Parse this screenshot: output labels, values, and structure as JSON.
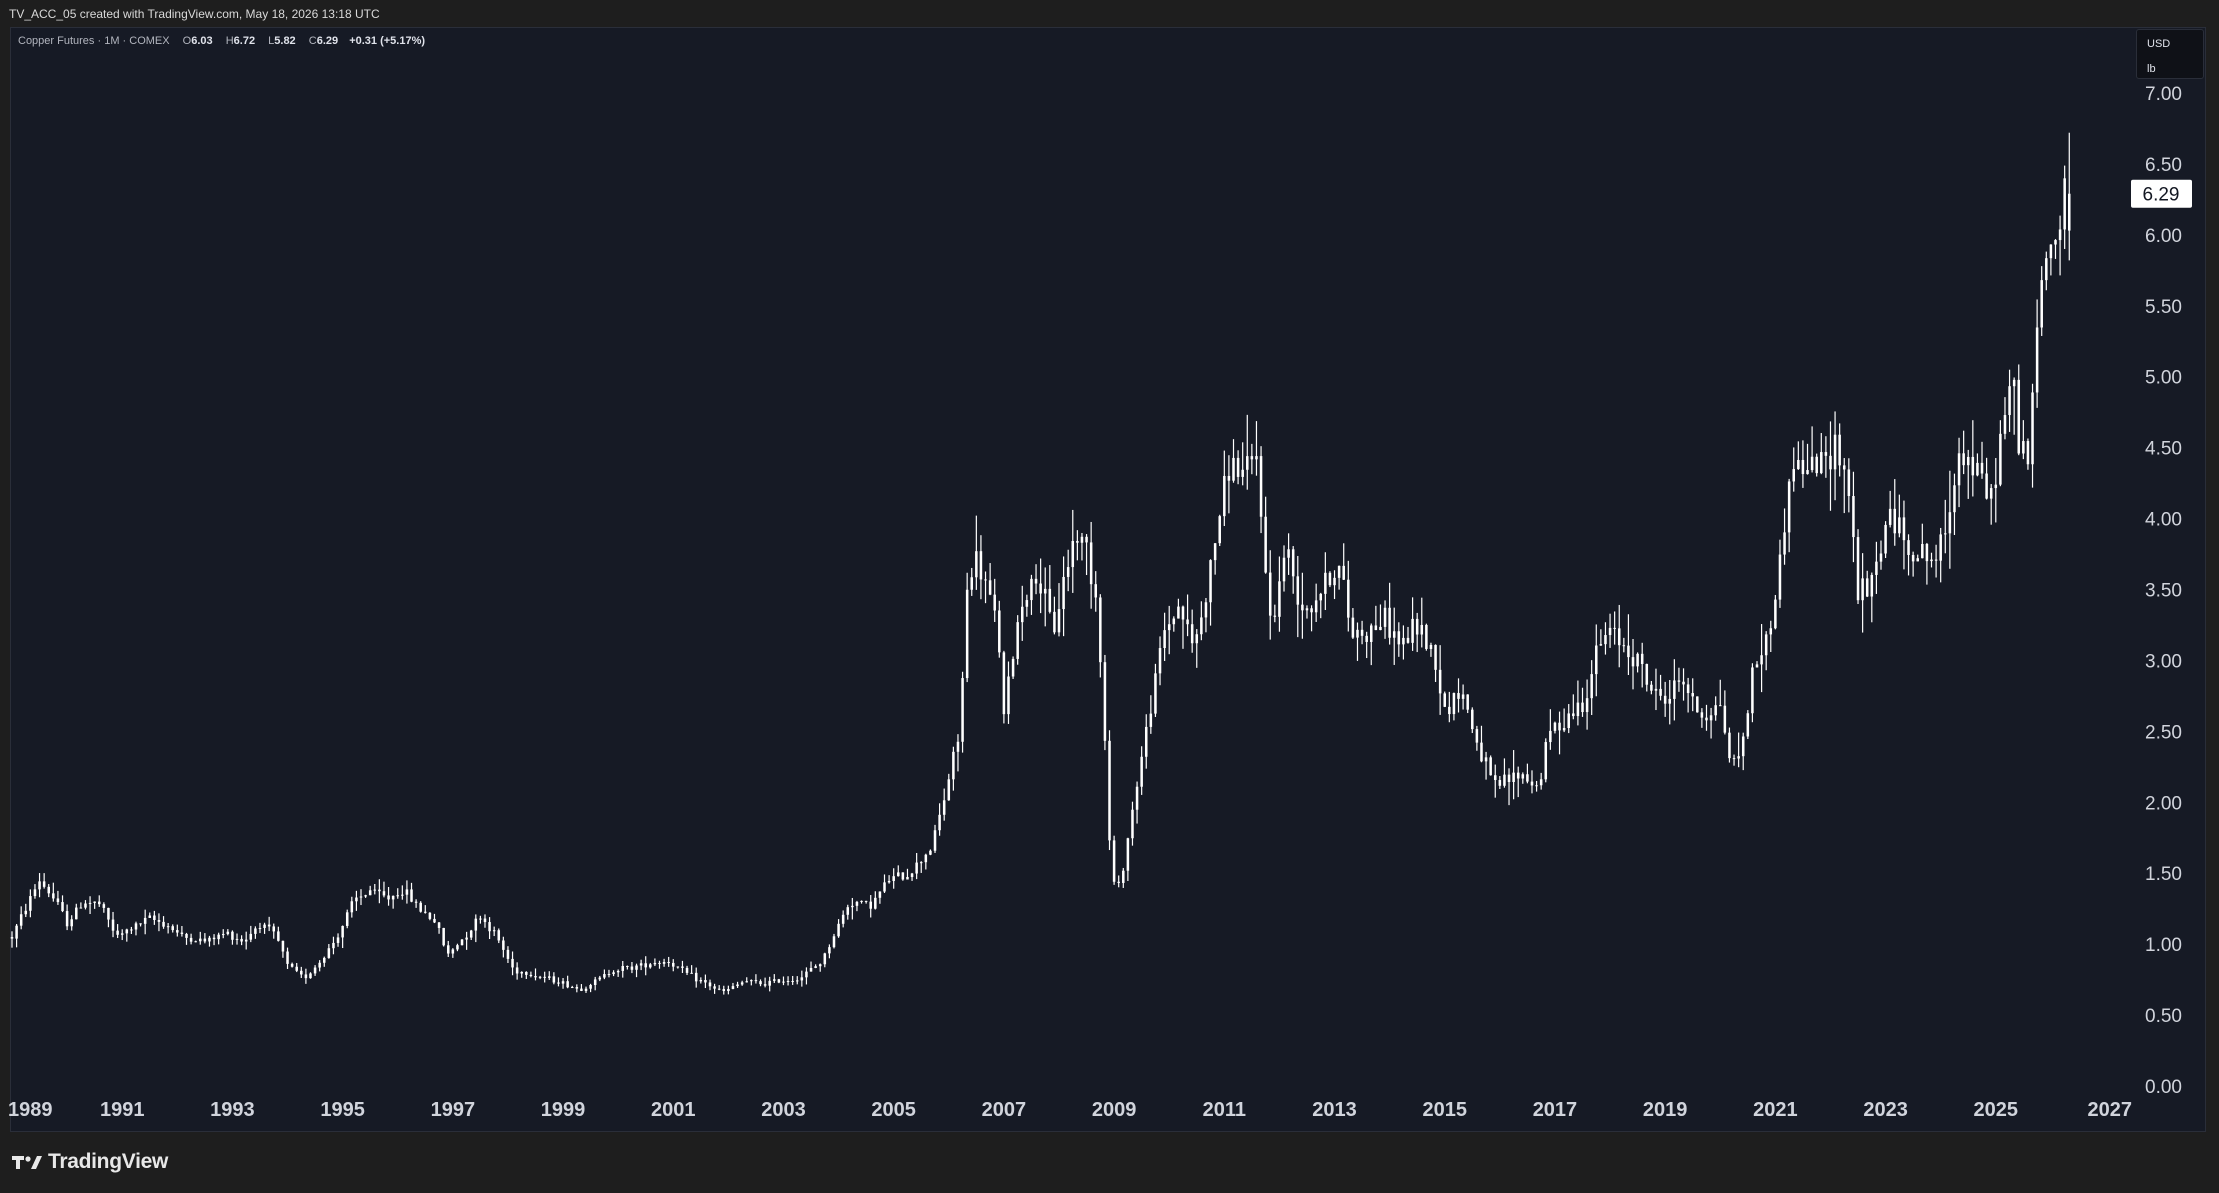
{
  "caption": "TV_ACC_05 created with TradingView.com, May 18, 2026 13:18 UTC",
  "legend": {
    "symbol": "Copper Futures · 1M · COMEX",
    "o_label": "O",
    "o_value": "6.03",
    "h_label": "H",
    "h_value": "6.72",
    "l_label": "L",
    "l_value": "5.82",
    "c_label": "C",
    "c_value": "6.29",
    "change": "+0.31 (+5.17%)"
  },
  "unit_box": {
    "currency": "USD",
    "unit": "lb"
  },
  "last_price_label": "6.29",
  "brand": {
    "name": "TradingView"
  },
  "colors": {
    "background": "#161a25",
    "candle": "#ffffff",
    "text": "#d1d4dc",
    "last_price_bg": "#ffffff"
  },
  "chart_data": {
    "type": "candlestick",
    "interval": "1M",
    "title": "Copper Futures · 1M · COMEX",
    "ylim": [
      0,
      7
    ],
    "y_ticks": [
      "0.00",
      "0.50",
      "1.00",
      "1.50",
      "2.00",
      "2.50",
      "3.00",
      "3.50",
      "4.00",
      "4.50",
      "5.00",
      "5.50",
      "6.00",
      "6.50",
      "7.00"
    ],
    "x_ticks": [
      "1989",
      "1991",
      "1993",
      "1995",
      "1997",
      "1999",
      "2001",
      "2003",
      "2005",
      "2007",
      "2009",
      "2011",
      "2013",
      "2015",
      "2017",
      "2019",
      "2021",
      "2023",
      "2025",
      "2027"
    ],
    "xlim": [
      1989.0,
      2027.0
    ],
    "grid": false,
    "last": {
      "open": 6.03,
      "high": 6.72,
      "low": 5.82,
      "close": 6.29,
      "change": 0.31,
      "change_pct": 5.17
    },
    "anchors": [
      [
        1989.0,
        1.05
      ],
      [
        1989.3,
        1.3
      ],
      [
        1989.5,
        1.45
      ],
      [
        1989.8,
        1.3
      ],
      [
        1990.0,
        1.15
      ],
      [
        1990.3,
        1.3
      ],
      [
        1990.6,
        1.28
      ],
      [
        1990.9,
        1.05
      ],
      [
        1991.2,
        1.12
      ],
      [
        1991.5,
        1.18
      ],
      [
        1991.8,
        1.14
      ],
      [
        1992.1,
        1.05
      ],
      [
        1992.5,
        1.02
      ],
      [
        1992.9,
        1.08
      ],
      [
        1993.2,
        1.02
      ],
      [
        1993.5,
        1.15
      ],
      [
        1993.8,
        1.05
      ],
      [
        1994.0,
        0.85
      ],
      [
        1994.3,
        0.76
      ],
      [
        1994.6,
        0.88
      ],
      [
        1994.9,
        1.05
      ],
      [
        1995.2,
        1.3
      ],
      [
        1995.5,
        1.38
      ],
      [
        1995.8,
        1.32
      ],
      [
        1996.1,
        1.38
      ],
      [
        1996.4,
        1.25
      ],
      [
        1996.7,
        1.15
      ],
      [
        1996.9,
        0.92
      ],
      [
        1997.2,
        1.05
      ],
      [
        1997.5,
        1.2
      ],
      [
        1997.8,
        1.05
      ],
      [
        1998.1,
        0.82
      ],
      [
        1998.5,
        0.78
      ],
      [
        1998.9,
        0.74
      ],
      [
        1999.3,
        0.68
      ],
      [
        1999.6,
        0.74
      ],
      [
        1999.9,
        0.82
      ],
      [
        2000.3,
        0.84
      ],
      [
        2000.6,
        0.87
      ],
      [
        2000.9,
        0.88
      ],
      [
        2001.3,
        0.78
      ],
      [
        2001.6,
        0.72
      ],
      [
        2001.9,
        0.66
      ],
      [
        2002.3,
        0.74
      ],
      [
        2002.6,
        0.72
      ],
      [
        2002.9,
        0.74
      ],
      [
        2003.3,
        0.76
      ],
      [
        2003.7,
        0.88
      ],
      [
        2003.9,
        1.05
      ],
      [
        2004.2,
        1.3
      ],
      [
        2004.6,
        1.28
      ],
      [
        2004.9,
        1.45
      ],
      [
        2005.3,
        1.5
      ],
      [
        2005.7,
        1.7
      ],
      [
        2005.9,
        2.0
      ],
      [
        2006.2,
        2.5
      ],
      [
        2006.35,
        3.6
      ],
      [
        2006.5,
        3.7
      ],
      [
        2006.7,
        3.5
      ],
      [
        2006.9,
        3.2
      ],
      [
        2007.0,
        2.6
      ],
      [
        2007.3,
        3.4
      ],
      [
        2007.6,
        3.6
      ],
      [
        2007.9,
        3.2
      ],
      [
        2008.1,
        3.6
      ],
      [
        2008.3,
        3.9
      ],
      [
        2008.5,
        3.8
      ],
      [
        2008.7,
        3.4
      ],
      [
        2008.85,
        2.3
      ],
      [
        2008.95,
        1.45
      ],
      [
        2009.1,
        1.4
      ],
      [
        2009.4,
        2.1
      ],
      [
        2009.7,
        2.75
      ],
      [
        2009.9,
        3.2
      ],
      [
        2010.2,
        3.4
      ],
      [
        2010.4,
        3.1
      ],
      [
        2010.6,
        3.3
      ],
      [
        2010.9,
        4.0
      ],
      [
        2011.1,
        4.4
      ],
      [
        2011.4,
        4.3
      ],
      [
        2011.6,
        4.45
      ],
      [
        2011.8,
        3.3
      ],
      [
        2011.95,
        3.4
      ],
      [
        2012.1,
        3.8
      ],
      [
        2012.4,
        3.4
      ],
      [
        2012.6,
        3.4
      ],
      [
        2012.9,
        3.6
      ],
      [
        2013.1,
        3.65
      ],
      [
        2013.3,
        3.2
      ],
      [
        2013.6,
        3.2
      ],
      [
        2013.9,
        3.3
      ],
      [
        2014.2,
        3.1
      ],
      [
        2014.5,
        3.25
      ],
      [
        2014.8,
        3.05
      ],
      [
        2015.0,
        2.65
      ],
      [
        2015.3,
        2.8
      ],
      [
        2015.6,
        2.4
      ],
      [
        2015.9,
        2.1
      ],
      [
        2016.1,
        2.15
      ],
      [
        2016.4,
        2.2
      ],
      [
        2016.7,
        2.1
      ],
      [
        2016.9,
        2.5
      ],
      [
        2017.2,
        2.6
      ],
      [
        2017.5,
        2.7
      ],
      [
        2017.8,
        3.1
      ],
      [
        2018.0,
        3.2
      ],
      [
        2018.3,
        3.1
      ],
      [
        2018.5,
        3.0
      ],
      [
        2018.8,
        2.75
      ],
      [
        2019.1,
        2.75
      ],
      [
        2019.3,
        2.9
      ],
      [
        2019.5,
        2.7
      ],
      [
        2019.7,
        2.6
      ],
      [
        2020.0,
        2.7
      ],
      [
        2020.2,
        2.25
      ],
      [
        2020.4,
        2.4
      ],
      [
        2020.6,
        2.95
      ],
      [
        2020.9,
        3.2
      ],
      [
        2021.1,
        3.75
      ],
      [
        2021.3,
        4.4
      ],
      [
        2021.6,
        4.35
      ],
      [
        2021.9,
        4.4
      ],
      [
        2022.1,
        4.55
      ],
      [
        2022.3,
        4.3
      ],
      [
        2022.5,
        3.5
      ],
      [
        2022.7,
        3.45
      ],
      [
        2022.9,
        3.8
      ],
      [
        2023.1,
        4.05
      ],
      [
        2023.4,
        3.8
      ],
      [
        2023.6,
        3.75
      ],
      [
        2023.9,
        3.7
      ],
      [
        2024.1,
        3.9
      ],
      [
        2024.3,
        4.5
      ],
      [
        2024.5,
        4.4
      ],
      [
        2024.7,
        4.3
      ],
      [
        2024.9,
        4.1
      ],
      [
        2025.1,
        4.6
      ],
      [
        2025.3,
        5.0
      ],
      [
        2025.4,
        4.6
      ],
      [
        2025.6,
        4.4
      ],
      [
        2025.8,
        5.6
      ],
      [
        2025.95,
        5.9
      ],
      [
        2026.1,
        6.0
      ],
      [
        2026.3,
        6.29
      ]
    ]
  }
}
